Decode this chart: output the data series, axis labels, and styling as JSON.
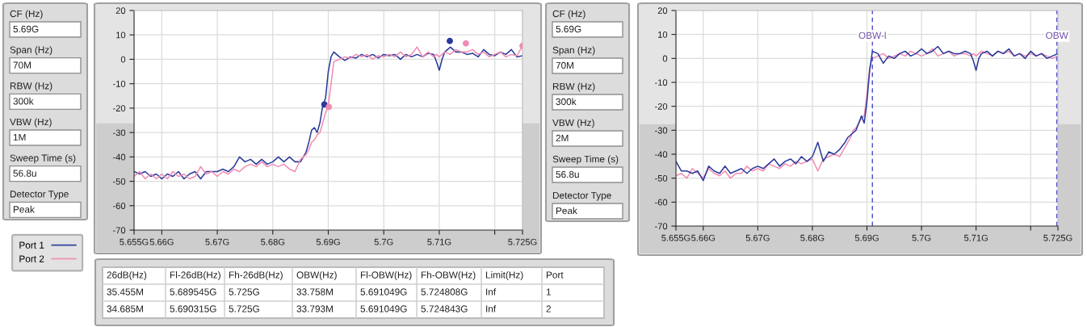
{
  "chart_data": [
    {
      "type": "other",
      "annotations": [
        "CF (Hz)",
        "5.69G",
        "Span (Hz)",
        "70M",
        "RBW (Hz)",
        "300k",
        "VBW (Hz)",
        "1M",
        "Sweep Time (s)",
        "56.8u",
        "Detector Type",
        "Peak"
      ]
    },
    {
      "type": "line",
      "legend": "left",
      "grid": true,
      "xlim": [
        5.655,
        5.725
      ],
      "ylim": [
        -70,
        20
      ],
      "xticks": [
        {
          "value": 5.655,
          "label": "5.655G"
        },
        {
          "value": 5.66,
          "label": "5.66G"
        },
        {
          "value": 5.67,
          "label": "5.67G"
        },
        {
          "value": 5.68,
          "label": "5.68G"
        },
        {
          "value": 5.69,
          "label": "5.69G"
        },
        {
          "value": 5.7,
          "label": "5.7G"
        },
        {
          "value": 5.71,
          "label": "5.71G"
        },
        {
          "value": 5.72,
          "label": null
        },
        {
          "value": 5.725,
          "label": "5.725G"
        }
      ],
      "yticks": [
        -70,
        -60,
        -50,
        -40,
        -30,
        -20,
        -10,
        0,
        10,
        20
      ],
      "x": [
        5.655,
        5.656,
        5.657,
        5.658,
        5.659,
        5.66,
        5.661,
        5.662,
        5.663,
        5.664,
        5.665,
        5.666,
        5.667,
        5.668,
        5.669,
        5.67,
        5.671,
        5.672,
        5.673,
        5.674,
        5.675,
        5.676,
        5.677,
        5.678,
        5.679,
        5.68,
        5.681,
        5.682,
        5.683,
        5.684,
        5.685,
        5.686,
        5.6865,
        5.687,
        5.6875,
        5.688,
        5.6885,
        5.689,
        5.6895,
        5.69,
        5.6905,
        5.691,
        5.692,
        5.693,
        5.694,
        5.695,
        5.696,
        5.697,
        5.698,
        5.699,
        5.7,
        5.701,
        5.702,
        5.703,
        5.704,
        5.705,
        5.706,
        5.707,
        5.708,
        5.709,
        5.7095,
        5.71,
        5.7105,
        5.711,
        5.712,
        5.713,
        5.714,
        5.715,
        5.716,
        5.717,
        5.718,
        5.719,
        5.72,
        5.721,
        5.722,
        5.723,
        5.724,
        5.725
      ],
      "series": [
        {
          "name": "Port 1",
          "color": "#2a3a9a",
          "values": [
            -46,
            -47,
            -46,
            -48,
            -47,
            -49,
            -47,
            -48,
            -46,
            -49,
            -47,
            -46,
            -49,
            -46,
            -46,
            -46,
            -45,
            -46,
            -44,
            -40,
            -42,
            -41,
            -43,
            -41,
            -43,
            -42,
            -40,
            -42,
            -40,
            -42,
            -42,
            -38,
            -34,
            -29,
            -28,
            -30,
            -26,
            -19,
            -16,
            -5,
            1,
            3,
            1,
            -0.5,
            1,
            0.5,
            2,
            1,
            2,
            0.5,
            2,
            1.5,
            2,
            0,
            2,
            1,
            2,
            1,
            2.5,
            2,
            -1,
            -4.5,
            0,
            3,
            5,
            3,
            3,
            2,
            2.5,
            1,
            4,
            2,
            1.5,
            3,
            2,
            4,
            1,
            1.5
          ]
        },
        {
          "name": "Port 2",
          "color": "#f08cb4",
          "values": [
            -48,
            -46,
            -49,
            -47,
            -49,
            -47,
            -49,
            -46,
            -48,
            -47,
            -49,
            -48,
            -44,
            -47,
            -46,
            -48,
            -46,
            -47,
            -45,
            -46,
            -44,
            -43,
            -44,
            -42,
            -44,
            -43,
            -44,
            -43,
            -45,
            -46,
            -41,
            -39,
            -37,
            -34,
            -33,
            -31,
            -30,
            -26,
            -22,
            -19,
            -10,
            -1,
            0,
            1,
            0.5,
            2,
            1,
            2,
            0,
            1.5,
            1,
            2,
            1,
            3,
            1,
            2,
            5,
            1,
            3,
            1,
            2,
            1,
            2,
            3,
            2,
            4,
            3,
            3,
            4,
            2,
            3,
            1,
            2,
            3,
            1,
            2,
            1.5,
            5.5
          ]
        },
        {
          "type": "scatter",
          "marker": "circle",
          "color": "#2a3a9a",
          "x": [
            5.6893,
            5.7119
          ],
          "values": [
            -18.5,
            7.5
          ]
        },
        {
          "type": "scatter",
          "marker": "circle",
          "color": "#f08cb4",
          "x": [
            5.6901,
            5.7148,
            5.725
          ],
          "values": [
            -19.5,
            6.5,
            5.5
          ]
        }
      ]
    },
    {
      "type": "other",
      "annotations": [
        "CF (Hz)",
        "5.69G",
        "Span (Hz)",
        "70M",
        "RBW (Hz)",
        "300k",
        "VBW (Hz)",
        "2M",
        "Sweep Time (s)",
        "56.8u",
        "Detector Type",
        "Peak"
      ]
    },
    {
      "type": "line",
      "grid": true,
      "xlim": [
        5.655,
        5.725
      ],
      "ylim": [
        -70,
        20
      ],
      "xticks": [
        {
          "value": 5.655,
          "label": "5.655G"
        },
        {
          "value": 5.66,
          "label": "5.66G"
        },
        {
          "value": 5.67,
          "label": "5.67G"
        },
        {
          "value": 5.68,
          "label": "5.68G"
        },
        {
          "value": 5.69,
          "label": "5.69G"
        },
        {
          "value": 5.7,
          "label": "5.7G"
        },
        {
          "value": 5.71,
          "label": "5.71G"
        },
        {
          "value": 5.72,
          "label": null
        },
        {
          "value": 5.725,
          "label": "5.725G"
        }
      ],
      "yticks": [
        -70,
        -60,
        -50,
        -40,
        -30,
        -20,
        -10,
        0,
        10,
        20
      ],
      "x": [
        5.655,
        5.656,
        5.657,
        5.658,
        5.659,
        5.66,
        5.661,
        5.662,
        5.663,
        5.664,
        5.665,
        5.666,
        5.667,
        5.668,
        5.669,
        5.67,
        5.671,
        5.672,
        5.673,
        5.674,
        5.675,
        5.676,
        5.677,
        5.678,
        5.679,
        5.68,
        5.681,
        5.682,
        5.683,
        5.684,
        5.685,
        5.686,
        5.6865,
        5.687,
        5.6875,
        5.688,
        5.6885,
        5.689,
        5.6895,
        5.69,
        5.6905,
        5.691,
        5.692,
        5.693,
        5.694,
        5.695,
        5.696,
        5.697,
        5.698,
        5.699,
        5.7,
        5.701,
        5.702,
        5.703,
        5.704,
        5.705,
        5.706,
        5.707,
        5.708,
        5.709,
        5.7095,
        5.71,
        5.7105,
        5.711,
        5.712,
        5.713,
        5.714,
        5.715,
        5.716,
        5.717,
        5.718,
        5.719,
        5.72,
        5.721,
        5.722,
        5.723,
        5.724,
        5.725
      ],
      "series": [
        {
          "color": "#f08cb4",
          "values": [
            -49,
            -48,
            -50,
            -46,
            -48,
            -50,
            -46,
            -48,
            -49,
            -47,
            -50,
            -48,
            -48,
            -45,
            -47,
            -46,
            -47,
            -44,
            -45,
            -46,
            -44,
            -45,
            -43,
            -44,
            -43,
            -42,
            -47,
            -42,
            -41,
            -40,
            -41,
            -37,
            -35,
            -33,
            -30,
            -29,
            -27,
            -25,
            -24,
            -15,
            -4,
            0,
            1,
            2,
            0,
            1,
            2,
            1,
            3,
            2,
            1,
            2,
            4,
            1,
            2,
            3,
            1,
            2,
            2,
            1,
            2,
            1,
            2,
            3,
            2,
            1,
            3,
            2,
            3,
            1,
            2,
            1,
            2,
            1,
            2,
            1,
            0,
            1
          ]
        },
        {
          "color": "#2a3a9a",
          "values": [
            -43,
            -47,
            -47,
            -48,
            -47,
            -51,
            -45,
            -47,
            -48,
            -45,
            -48,
            -47,
            -46,
            -48,
            -46,
            -45,
            -46,
            -44,
            -42,
            -45,
            -43,
            -42,
            -44,
            -41,
            -43,
            -41,
            -35,
            -43,
            -39,
            -40,
            -38,
            -35,
            -33,
            -32,
            -31,
            -30,
            -27,
            -24,
            -27,
            -18,
            -5,
            3,
            2,
            -2,
            1,
            0,
            2,
            3,
            1,
            2,
            4,
            2,
            3,
            5,
            2,
            3,
            2,
            2,
            3,
            2,
            -1,
            -5,
            0,
            2,
            3,
            1,
            3,
            2,
            4,
            1,
            2,
            0,
            3,
            1,
            2,
            0,
            1,
            2
          ]
        }
      ],
      "ref_lines": [
        {
          "axis": "x",
          "value": 5.691,
          "label": "OBW-l",
          "color": "#4a4ac8",
          "line_style": "dashed"
        },
        {
          "axis": "x",
          "value": 5.7248,
          "label": "OBW",
          "color": "#4a4ac8",
          "line_style": "dashed"
        }
      ]
    },
    {
      "type": "other",
      "categories": [
        "26dB(Hz)",
        "Fl-26dB(Hz)",
        "Fh-26dB(Hz)",
        "OBW(Hz)",
        "Fl-OBW(Hz)",
        "Fh-OBW(Hz)",
        "Limit(Hz)",
        "Port"
      ],
      "annotations": [
        "35.455M",
        "5.689545G",
        "5.725G",
        "33.758M",
        "5.691049G",
        "5.724808G",
        "Inf",
        "1",
        "34.685M",
        "5.690315G",
        "5.725G",
        "33.793M",
        "5.691049G",
        "5.724843G",
        "Inf",
        "2"
      ]
    }
  ]
}
